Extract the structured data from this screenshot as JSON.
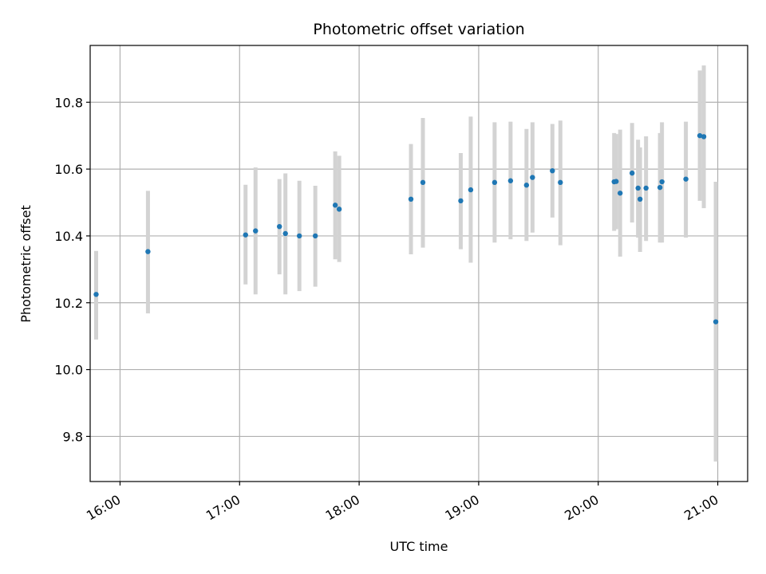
{
  "chart_data": {
    "type": "scatter",
    "title": "Photometric offset variation",
    "xlabel": "UTC time",
    "ylabel": "Photometric offset",
    "x_ticks": [
      "16:00",
      "17:00",
      "18:00",
      "19:00",
      "20:00",
      "21:00"
    ],
    "y_ticks": [
      "9.8",
      "10.0",
      "10.2",
      "10.4",
      "10.6",
      "10.8"
    ],
    "xlim": [
      "15:45",
      "21:15"
    ],
    "ylim": [
      9.665,
      10.97
    ],
    "grid": true,
    "colors": {
      "marker": "#1f77b4",
      "errorbar": "#d3d3d3",
      "grid": "#b0b0b0"
    },
    "series": [
      {
        "points": [
          {
            "x": "15:48",
            "y": 10.225,
            "lo": 10.09,
            "hi": 10.355
          },
          {
            "x": "16:14",
            "y": 10.353,
            "lo": 10.168,
            "hi": 10.535
          },
          {
            "x": "17:03",
            "y": 10.403,
            "lo": 10.255,
            "hi": 10.553
          },
          {
            "x": "17:08",
            "y": 10.415,
            "lo": 10.225,
            "hi": 10.605
          },
          {
            "x": "17:20",
            "y": 10.428,
            "lo": 10.285,
            "hi": 10.57
          },
          {
            "x": "17:23",
            "y": 10.407,
            "lo": 10.225,
            "hi": 10.587
          },
          {
            "x": "17:30",
            "y": 10.4,
            "lo": 10.235,
            "hi": 10.565
          },
          {
            "x": "17:38",
            "y": 10.4,
            "lo": 10.248,
            "hi": 10.55
          },
          {
            "x": "17:48",
            "y": 10.492,
            "lo": 10.33,
            "hi": 10.653
          },
          {
            "x": "17:50",
            "y": 10.48,
            "lo": 10.322,
            "hi": 10.64
          },
          {
            "x": "18:26",
            "y": 10.51,
            "lo": 10.345,
            "hi": 10.675
          },
          {
            "x": "18:32",
            "y": 10.56,
            "lo": 10.365,
            "hi": 10.753
          },
          {
            "x": "18:51",
            "y": 10.505,
            "lo": 10.36,
            "hi": 10.648
          },
          {
            "x": "18:56",
            "y": 10.538,
            "lo": 10.32,
            "hi": 10.757
          },
          {
            "x": "19:08",
            "y": 10.56,
            "lo": 10.38,
            "hi": 10.74
          },
          {
            "x": "19:16",
            "y": 10.565,
            "lo": 10.39,
            "hi": 10.742
          },
          {
            "x": "19:24",
            "y": 10.552,
            "lo": 10.385,
            "hi": 10.72
          },
          {
            "x": "19:27",
            "y": 10.575,
            "lo": 10.41,
            "hi": 10.74
          },
          {
            "x": "19:37",
            "y": 10.595,
            "lo": 10.455,
            "hi": 10.735
          },
          {
            "x": "19:41",
            "y": 10.56,
            "lo": 10.372,
            "hi": 10.745
          },
          {
            "x": "20:08",
            "y": 10.562,
            "lo": 10.415,
            "hi": 10.708
          },
          {
            "x": "20:09",
            "y": 10.563,
            "lo": 10.42,
            "hi": 10.705
          },
          {
            "x": "20:11",
            "y": 10.528,
            "lo": 10.338,
            "hi": 10.718
          },
          {
            "x": "20:17",
            "y": 10.588,
            "lo": 10.44,
            "hi": 10.738
          },
          {
            "x": "20:20",
            "y": 10.543,
            "lo": 10.395,
            "hi": 10.688
          },
          {
            "x": "20:21",
            "y": 10.51,
            "lo": 10.352,
            "hi": 10.665
          },
          {
            "x": "20:24",
            "y": 10.543,
            "lo": 10.385,
            "hi": 10.698
          },
          {
            "x": "20:31",
            "y": 10.545,
            "lo": 10.38,
            "hi": 10.708
          },
          {
            "x": "20:32",
            "y": 10.562,
            "lo": 10.38,
            "hi": 10.74
          },
          {
            "x": "20:44",
            "y": 10.57,
            "lo": 10.395,
            "hi": 10.742
          },
          {
            "x": "20:51",
            "y": 10.7,
            "lo": 10.505,
            "hi": 10.895
          },
          {
            "x": "20:53",
            "y": 10.697,
            "lo": 10.483,
            "hi": 10.91
          },
          {
            "x": "20:59",
            "y": 10.143,
            "lo": 9.725,
            "hi": 10.562
          }
        ]
      }
    ]
  }
}
